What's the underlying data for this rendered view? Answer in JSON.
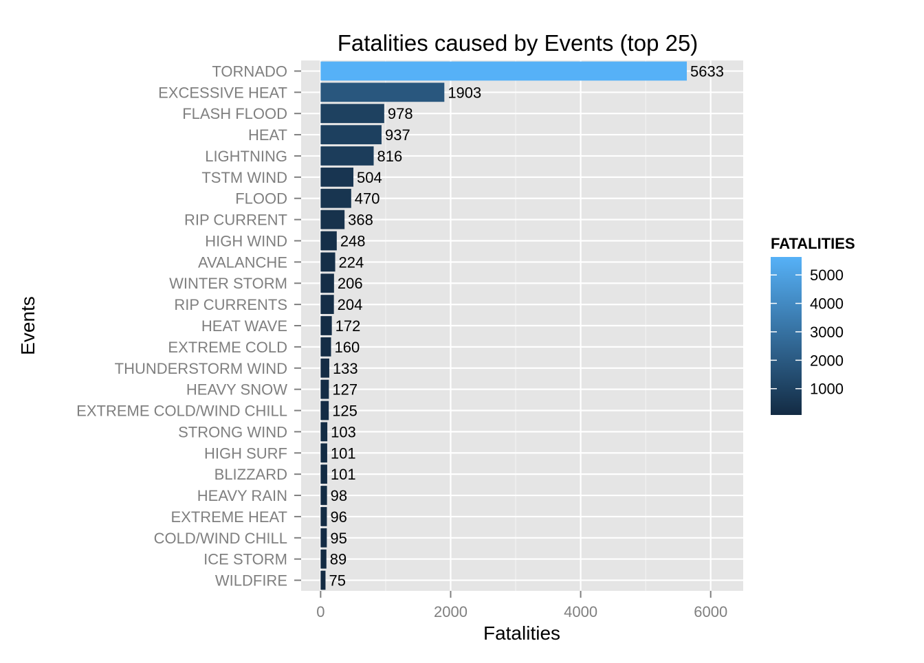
{
  "chart_data": {
    "type": "bar",
    "orientation": "horizontal",
    "title": "Fatalities caused by Events (top 25)",
    "xlabel": "Fatalities",
    "ylabel": "Events",
    "xlim": [
      -300,
      6500
    ],
    "x_ticks": [
      0,
      2000,
      4000,
      6000
    ],
    "x_tick_labels": [
      "0",
      "2000",
      "4000",
      "6000"
    ],
    "grid": true,
    "legend": {
      "title": "FATALITIES",
      "placement": "right",
      "color_low": "#132B43",
      "color_high": "#56B1F7",
      "range": [
        75,
        5633
      ],
      "ticks": [
        1000,
        2000,
        3000,
        4000,
        5000
      ],
      "tick_labels": [
        "1000",
        "2000",
        "3000",
        "4000",
        "5000"
      ]
    },
    "categories": [
      "TORNADO",
      "EXCESSIVE HEAT",
      "FLASH FLOOD",
      "HEAT",
      "LIGHTNING",
      "TSTM WIND",
      "FLOOD",
      "RIP CURRENT",
      "HIGH WIND",
      "AVALANCHE",
      "WINTER STORM",
      "RIP CURRENTS",
      "HEAT WAVE",
      "EXTREME COLD",
      "THUNDERSTORM WIND",
      "HEAVY SNOW",
      "EXTREME COLD/WIND CHILL",
      "STRONG WIND",
      "HIGH SURF",
      "BLIZZARD",
      "HEAVY RAIN",
      "EXTREME HEAT",
      "COLD/WIND CHILL",
      "ICE STORM",
      "WILDFIRE"
    ],
    "values": [
      5633,
      1903,
      978,
      937,
      816,
      504,
      470,
      368,
      248,
      224,
      206,
      204,
      172,
      160,
      133,
      127,
      125,
      103,
      101,
      101,
      98,
      96,
      95,
      89,
      75
    ],
    "data_labels": [
      "5633",
      "1903",
      "978",
      "937",
      "816",
      "504",
      "470",
      "368",
      "248",
      "224",
      "206",
      "204",
      "172",
      "160",
      "133",
      "127",
      "125",
      "103",
      "101",
      "101",
      "98",
      "96",
      "95",
      "89",
      "75"
    ]
  }
}
